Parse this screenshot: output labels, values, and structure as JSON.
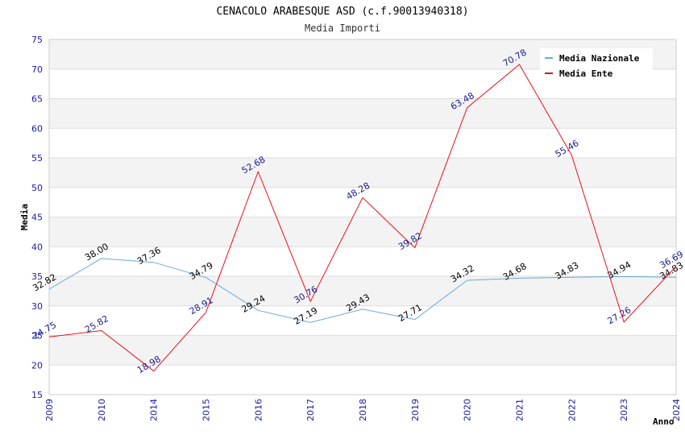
{
  "chart_data": {
    "type": "line",
    "title": "CENACOLO ARABESQUE ASD (c.f.90013940318)",
    "subtitle": "Media Importi",
    "xlabel": "Anno",
    "ylabel": "Media",
    "ylim": [
      15,
      75
    ],
    "yticks": [
      "15",
      "20",
      "25",
      "30",
      "35",
      "40",
      "45",
      "50",
      "55",
      "60",
      "65",
      "70",
      "75"
    ],
    "categories": [
      "2009",
      "2010",
      "2014",
      "2015",
      "2016",
      "2017",
      "2018",
      "2019",
      "2020",
      "2021",
      "2022",
      "2023",
      "2024"
    ],
    "grid": true,
    "legend_position": "top-right",
    "series": [
      {
        "name": "Media Nazionale",
        "color": "#6aa8e0",
        "label_color": "#000000",
        "values": [
          32.82,
          38.0,
          37.36,
          34.79,
          29.24,
          27.19,
          29.43,
          27.71,
          34.32,
          34.68,
          34.83,
          34.94,
          34.83
        ],
        "labels": [
          "32.82",
          "38.00",
          "37.36",
          "34.79",
          "29.24",
          "27.19",
          "29.43",
          "27.71",
          "34.32",
          "34.68",
          "34.83",
          "34.94",
          "34.83"
        ]
      },
      {
        "name": "Media Ente",
        "color": "#e8101a",
        "label_color": "#1a1a8c",
        "values": [
          24.75,
          25.82,
          18.98,
          28.91,
          52.68,
          30.76,
          48.28,
          39.82,
          63.48,
          70.78,
          55.46,
          27.26,
          36.69
        ],
        "labels": [
          "24.75",
          "25.82",
          "18.98",
          "28.91",
          "52.68",
          "30.76",
          "48.28",
          "39.82",
          "63.48",
          "70.78",
          "55.46",
          "27.26",
          "36.69"
        ]
      }
    ]
  }
}
